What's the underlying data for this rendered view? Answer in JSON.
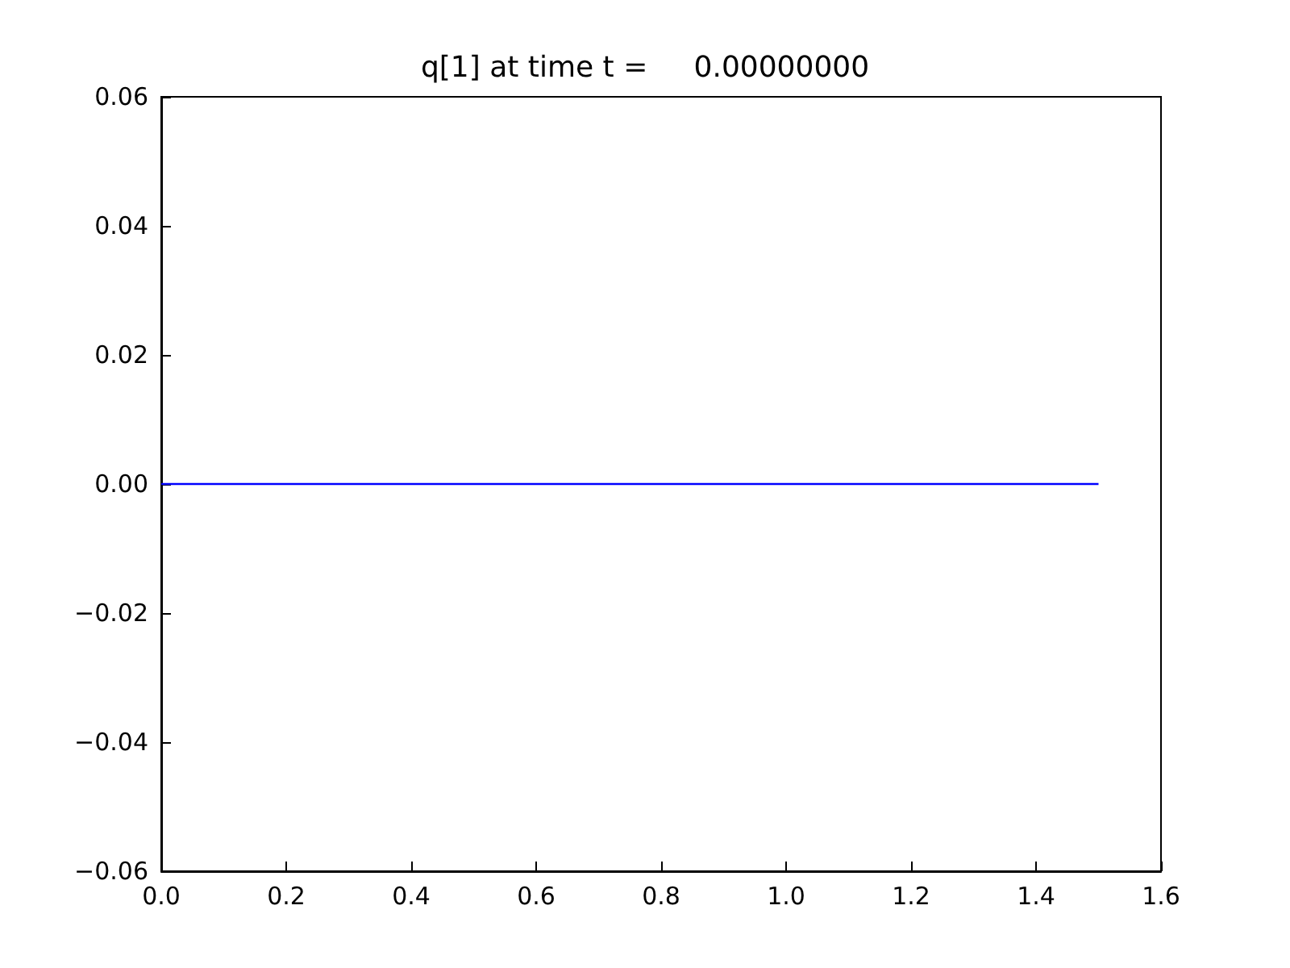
{
  "chart_data": {
    "type": "line",
    "title": "q[1] at time t =     0.00000000",
    "series": [
      {
        "color": "#0000ff",
        "x": [
          0,
          1.5
        ],
        "values": [
          0,
          0
        ]
      }
    ],
    "xlim": [
      0,
      1.6
    ],
    "xticks": [
      {
        "value": 0,
        "label": "0.0"
      },
      {
        "value": 0.2,
        "label": "0.2"
      },
      {
        "value": 0.4,
        "label": "0.4"
      },
      {
        "value": 0.6,
        "label": "0.6"
      },
      {
        "value": 0.8,
        "label": "0.8"
      },
      {
        "value": 1.0,
        "label": "1.0"
      },
      {
        "value": 1.2,
        "label": "1.2"
      },
      {
        "value": 1.4,
        "label": "1.4"
      },
      {
        "value": 1.6,
        "label": "1.6"
      }
    ],
    "ylim": [
      -0.06,
      0.06
    ],
    "yticks": [
      {
        "value": -0.06,
        "label": "−0.06"
      },
      {
        "value": -0.04,
        "label": "−0.04"
      },
      {
        "value": -0.02,
        "label": "−0.02"
      },
      {
        "value": 0,
        "label": "0.00"
      },
      {
        "value": 0.02,
        "label": "0.02"
      },
      {
        "value": 0.04,
        "label": "0.04"
      },
      {
        "value": 0.06,
        "label": "0.06"
      }
    ],
    "grid": false,
    "marker": "none",
    "line_style": "solid"
  }
}
